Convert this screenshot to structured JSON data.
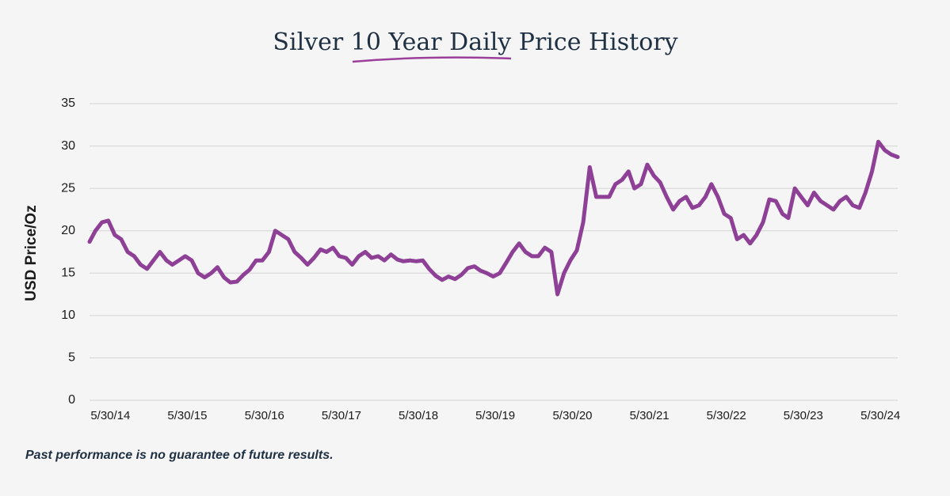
{
  "chart_data": {
    "type": "line",
    "title": "Silver 10 Year Daily Price History",
    "y_label": "USD Price/Oz",
    "note": "Past performance is no guarantee of future results.",
    "color": "#8e3f96",
    "grid": true,
    "xlim": [
      "2014-02-20",
      "2024-08-20"
    ],
    "xticks": [
      {
        "value": "2014-05-30",
        "label": "5/30/14"
      },
      {
        "value": "2015-05-30",
        "label": "5/30/15"
      },
      {
        "value": "2016-05-30",
        "label": "5/30/16"
      },
      {
        "value": "2017-05-30",
        "label": "5/30/17"
      },
      {
        "value": "2018-05-30",
        "label": "5/30/18"
      },
      {
        "value": "2019-05-30",
        "label": "5/30/19"
      },
      {
        "value": "2020-05-30",
        "label": "5/30/20"
      },
      {
        "value": "2021-05-30",
        "label": "5/30/21"
      },
      {
        "value": "2022-05-30",
        "label": "5/30/22"
      },
      {
        "value": "2023-05-30",
        "label": "5/30/23"
      },
      {
        "value": "2024-05-30",
        "label": "5/30/24"
      }
    ],
    "ylim": [
      0,
      35
    ],
    "yticks": [
      0,
      5,
      10,
      15,
      20,
      25,
      30,
      35
    ],
    "x": [
      "2014-02-20",
      "2014-03-20",
      "2014-04-20",
      "2014-05-20",
      "2014-06-20",
      "2014-07-20",
      "2014-08-20",
      "2014-09-20",
      "2014-10-20",
      "2014-11-20",
      "2014-12-20",
      "2015-01-20",
      "2015-02-20",
      "2015-03-20",
      "2015-04-20",
      "2015-05-20",
      "2015-06-20",
      "2015-07-20",
      "2015-08-20",
      "2015-09-20",
      "2015-10-20",
      "2015-11-20",
      "2015-12-20",
      "2016-01-20",
      "2016-02-20",
      "2016-03-20",
      "2016-04-20",
      "2016-05-20",
      "2016-06-20",
      "2016-07-20",
      "2016-08-20",
      "2016-09-20",
      "2016-10-20",
      "2016-11-20",
      "2016-12-20",
      "2017-01-20",
      "2017-02-20",
      "2017-03-20",
      "2017-04-20",
      "2017-05-20",
      "2017-06-20",
      "2017-07-20",
      "2017-08-20",
      "2017-09-20",
      "2017-10-20",
      "2017-11-20",
      "2017-12-20",
      "2018-01-20",
      "2018-02-20",
      "2018-03-20",
      "2018-04-20",
      "2018-05-20",
      "2018-06-20",
      "2018-07-20",
      "2018-08-20",
      "2018-09-20",
      "2018-10-20",
      "2018-11-20",
      "2018-12-20",
      "2019-01-20",
      "2019-02-20",
      "2019-03-20",
      "2019-04-20",
      "2019-05-20",
      "2019-06-20",
      "2019-07-20",
      "2019-08-20",
      "2019-09-20",
      "2019-10-20",
      "2019-11-20",
      "2019-12-20",
      "2020-01-20",
      "2020-02-20",
      "2020-03-20",
      "2020-04-20",
      "2020-05-20",
      "2020-06-20",
      "2020-07-20",
      "2020-08-20",
      "2020-09-20",
      "2020-10-20",
      "2020-11-20",
      "2020-12-20",
      "2021-01-20",
      "2021-02-20",
      "2021-03-20",
      "2021-04-20",
      "2021-05-20",
      "2021-06-20",
      "2021-07-20",
      "2021-08-20",
      "2021-09-20",
      "2021-10-20",
      "2021-11-20",
      "2021-12-20",
      "2022-01-20",
      "2022-02-20",
      "2022-03-20",
      "2022-04-20",
      "2022-05-20",
      "2022-06-20",
      "2022-07-20",
      "2022-08-20",
      "2022-09-20",
      "2022-10-20",
      "2022-11-20",
      "2022-12-20",
      "2023-01-20",
      "2023-02-20",
      "2023-03-20",
      "2023-04-20",
      "2023-05-20",
      "2023-06-20",
      "2023-07-20",
      "2023-08-20",
      "2023-09-20",
      "2023-10-20",
      "2023-11-20",
      "2023-12-20",
      "2024-01-20",
      "2024-02-20",
      "2024-03-20",
      "2024-04-20",
      "2024-05-20",
      "2024-06-20",
      "2024-07-20",
      "2024-08-20"
    ],
    "values": [
      18.7,
      20,
      21,
      21.2,
      19.5,
      19,
      17.5,
      17,
      16,
      15.5,
      16.5,
      17.5,
      16.5,
      16,
      16.5,
      17,
      16.5,
      15,
      14.5,
      15,
      15.7,
      14.5,
      13.9,
      14,
      14.8,
      15.4,
      16.5,
      16.5,
      17.5,
      20,
      19.5,
      19,
      17.5,
      16.8,
      16,
      16.8,
      17.8,
      17.5,
      18,
      17,
      16.8,
      16,
      17,
      17.5,
      16.8,
      17,
      16.5,
      17.2,
      16.6,
      16.4,
      16.5,
      16.4,
      16.5,
      15.5,
      14.7,
      14.2,
      14.6,
      14.3,
      14.8,
      15.6,
      15.8,
      15.3,
      15,
      14.6,
      15,
      16.2,
      17.5,
      18.5,
      17.5,
      17,
      17,
      18,
      17.5,
      12.5,
      15,
      16.5,
      17.7,
      21,
      27.5,
      24,
      24,
      24,
      25.5,
      26,
      27,
      25,
      25.5,
      27.8,
      26.5,
      25.7,
      24,
      22.5,
      23.5,
      24,
      22.7,
      23,
      24,
      25.5,
      24,
      22,
      21.5,
      19,
      19.5,
      18.5,
      19.5,
      21,
      23.7,
      23.5,
      22,
      21.5,
      25,
      24,
      23,
      24.5,
      23.5,
      23,
      22.5,
      23.5,
      24,
      23,
      22.7,
      24.5,
      27,
      30.5,
      29.5,
      29,
      28.7
    ]
  }
}
